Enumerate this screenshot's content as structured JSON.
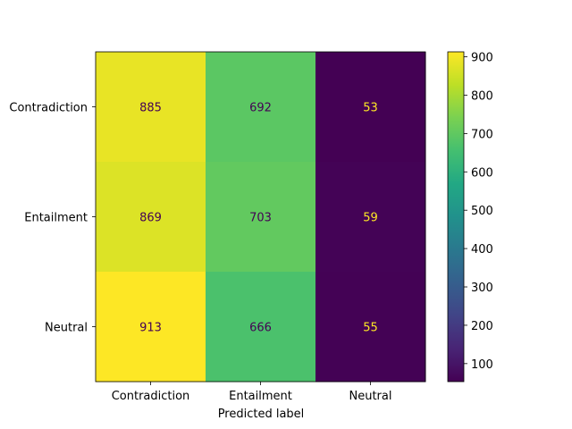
{
  "chart_data": {
    "type": "heatmap",
    "colormap": "viridis",
    "xlabel": "Predicted label",
    "ylabel": "",
    "x_categories": [
      "Contradiction",
      "Entailment",
      "Neutral"
    ],
    "y_categories": [
      "Contradiction",
      "Entailment",
      "Neutral"
    ],
    "values": [
      [
        885,
        692,
        53
      ],
      [
        869,
        703,
        59
      ],
      [
        913,
        666,
        55
      ]
    ],
    "colorbar": {
      "range": [
        53,
        913
      ],
      "ticks": [
        100,
        200,
        300,
        400,
        500,
        600,
        700,
        800,
        900
      ]
    },
    "text_colors": {
      "dark_cell": "#fde725",
      "light_cell": "#440154"
    }
  }
}
